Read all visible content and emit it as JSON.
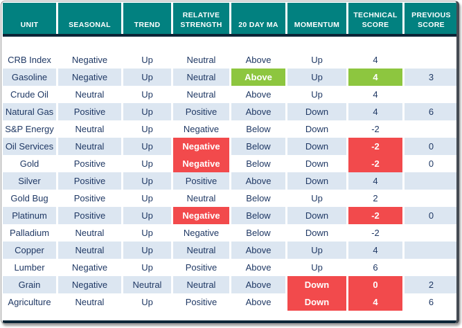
{
  "colors": {
    "header_bg": "#028180",
    "row_alt": "#dce6f1",
    "text": "#1f3864",
    "green": "#8dc63f",
    "red": "#f24a4c",
    "divider": "#0c2537"
  },
  "chart_data": {
    "type": "table",
    "title": "Commodity technical score table",
    "columns": [
      "UNIT",
      "SEASONAL",
      "TREND",
      "RELATIVE STRENGTH",
      "20 DAY MA",
      "MOMENTUM",
      "TECHNICAL SCORE",
      "PREVIOUS SCORE"
    ],
    "rows": [
      {
        "unit": "CRB Index",
        "seasonal": "Negative",
        "trend": "Up",
        "relative_strength": "Neutral",
        "ma20": "Above",
        "momentum": "Up",
        "technical_score": "4",
        "previous_score": "",
        "highlights": {}
      },
      {
        "unit": "Gasoline",
        "seasonal": "Negative",
        "trend": "Up",
        "relative_strength": "Neutral",
        "ma20": "Above",
        "momentum": "Up",
        "technical_score": "4",
        "previous_score": "3",
        "highlights": {
          "ma20": "green",
          "technical_score": "green"
        }
      },
      {
        "unit": "Crude Oil",
        "seasonal": "Neutral",
        "trend": "Up",
        "relative_strength": "Neutral",
        "ma20": "Above",
        "momentum": "Up",
        "technical_score": "4",
        "previous_score": "",
        "highlights": {}
      },
      {
        "unit": "Natural Gas",
        "seasonal": "Positive",
        "trend": "Up",
        "relative_strength": "Positive",
        "ma20": "Above",
        "momentum": "Down",
        "technical_score": "4",
        "previous_score": "6",
        "highlights": {}
      },
      {
        "unit": "S&P Energy",
        "seasonal": "Neutral",
        "trend": "Up",
        "relative_strength": "Negative",
        "ma20": "Below",
        "momentum": "Down",
        "technical_score": "-2",
        "previous_score": "",
        "highlights": {}
      },
      {
        "unit": "Oil Services",
        "seasonal": "Neutral",
        "trend": "Up",
        "relative_strength": "Negative",
        "ma20": "Below",
        "momentum": "Down",
        "technical_score": "-2",
        "previous_score": "0",
        "highlights": {
          "relative_strength": "red",
          "technical_score": "red"
        }
      },
      {
        "unit": "Gold",
        "seasonal": "Positive",
        "trend": "Up",
        "relative_strength": "Negative",
        "ma20": "Below",
        "momentum": "Down",
        "technical_score": "-2",
        "previous_score": "0",
        "highlights": {
          "relative_strength": "red",
          "technical_score": "red"
        }
      },
      {
        "unit": "Silver",
        "seasonal": "Positive",
        "trend": "Up",
        "relative_strength": "Positive",
        "ma20": "Above",
        "momentum": "Down",
        "technical_score": "4",
        "previous_score": "",
        "highlights": {}
      },
      {
        "unit": "Gold Bug",
        "seasonal": "Positive",
        "trend": "Up",
        "relative_strength": "Neutral",
        "ma20": "Below",
        "momentum": "Up",
        "technical_score": "2",
        "previous_score": "",
        "highlights": {}
      },
      {
        "unit": "Platinum",
        "seasonal": "Positive",
        "trend": "Up",
        "relative_strength": "Negative",
        "ma20": "Below",
        "momentum": "Down",
        "technical_score": "-2",
        "previous_score": "0",
        "highlights": {
          "relative_strength": "red",
          "technical_score": "red"
        }
      },
      {
        "unit": "Palladium",
        "seasonal": "Neutral",
        "trend": "Up",
        "relative_strength": "Negative",
        "ma20": "Below",
        "momentum": "Down",
        "technical_score": "-2",
        "previous_score": "",
        "highlights": {}
      },
      {
        "unit": "Copper",
        "seasonal": "Neutral",
        "trend": "Up",
        "relative_strength": "Neutral",
        "ma20": "Above",
        "momentum": "Up",
        "technical_score": "4",
        "previous_score": "",
        "highlights": {}
      },
      {
        "unit": "Lumber",
        "seasonal": "Negative",
        "trend": "Up",
        "relative_strength": "Positive",
        "ma20": "Above",
        "momentum": "Up",
        "technical_score": "6",
        "previous_score": "",
        "highlights": {}
      },
      {
        "unit": "Grain",
        "seasonal": "Negative",
        "trend": "Neutral",
        "relative_strength": "Neutral",
        "ma20": "Above",
        "momentum": "Down",
        "technical_score": "0",
        "previous_score": "2",
        "highlights": {
          "momentum": "red",
          "technical_score": "red"
        }
      },
      {
        "unit": "Agriculture",
        "seasonal": "Neutral",
        "trend": "Up",
        "relative_strength": "Positive",
        "ma20": "Above",
        "momentum": "Down",
        "technical_score": "4",
        "previous_score": "6",
        "highlights": {
          "momentum": "red",
          "technical_score": "red"
        }
      }
    ]
  }
}
